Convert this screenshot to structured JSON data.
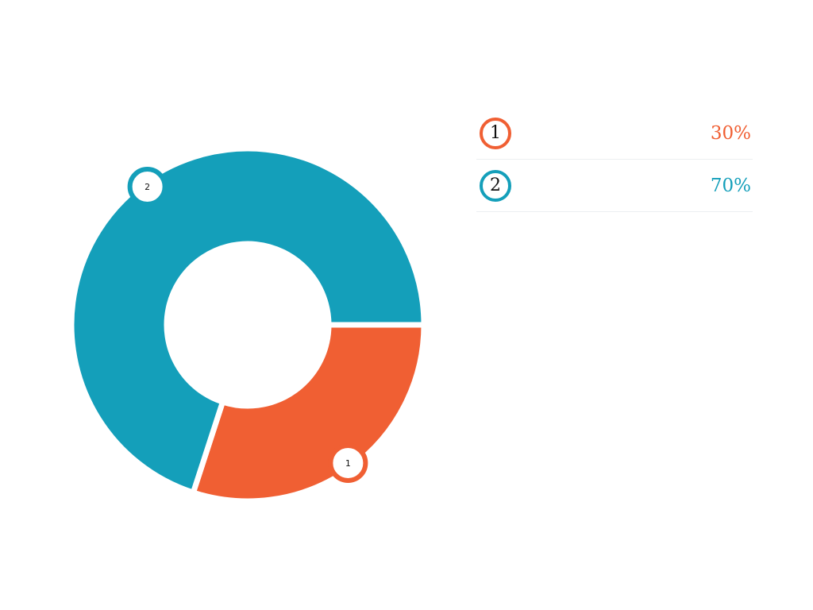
{
  "chart_data": {
    "type": "pie",
    "donut": true,
    "categories": [
      "1",
      "2"
    ],
    "values": [
      30,
      70
    ],
    "value_labels": [
      "30%",
      "70%"
    ],
    "colors": [
      "#f05f33",
      "#149fba"
    ],
    "legend_position": "right"
  }
}
